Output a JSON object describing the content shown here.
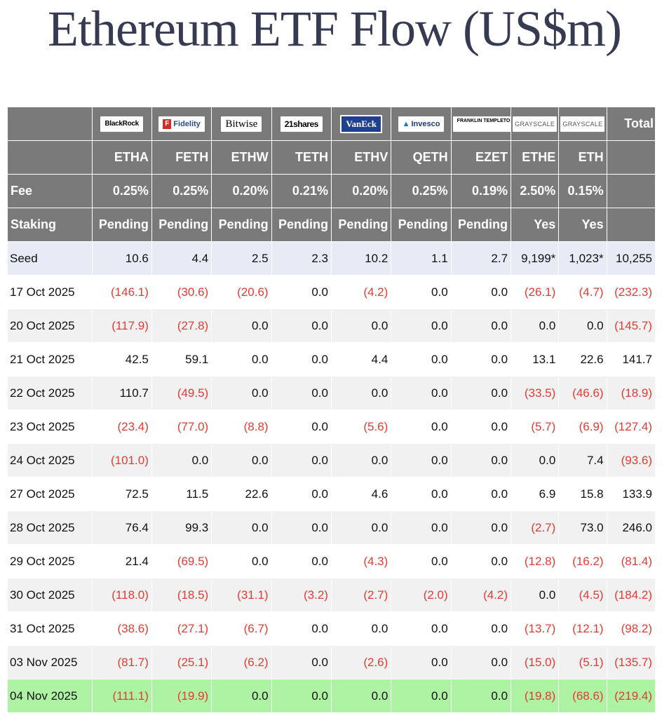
{
  "title": "Ethereum ETF Flow (US$m)",
  "issuers": [
    {
      "name": "BlackRock",
      "logo_text": "BlackRock"
    },
    {
      "name": "Fidelity",
      "logo_text": "Fidelity"
    },
    {
      "name": "Bitwise",
      "logo_text": "Bitwise"
    },
    {
      "name": "21shares",
      "logo_text": "21shares"
    },
    {
      "name": "VanEck",
      "logo_text": "VanEck"
    },
    {
      "name": "Invesco",
      "logo_text": "Invesco"
    },
    {
      "name": "Franklin Templeton",
      "logo_text": "FRANKLIN TEMPLETON"
    },
    {
      "name": "Grayscale",
      "logo_text": "GRAYSCALE"
    },
    {
      "name": "Grayscale",
      "logo_text": "GRAYSCALE"
    }
  ],
  "header": {
    "total_label": "Total",
    "fee_label": "Fee",
    "staking_label": "Staking",
    "tickers": [
      "ETHA",
      "FETH",
      "ETHW",
      "TETH",
      "ETHV",
      "QETH",
      "EZET",
      "ETHE",
      "ETH"
    ],
    "fees": [
      "0.25%",
      "0.25%",
      "0.20%",
      "0.21%",
      "0.20%",
      "0.25%",
      "0.19%",
      "2.50%",
      "0.15%"
    ],
    "staking": [
      "Pending",
      "Pending",
      "Pending",
      "Pending",
      "Pending",
      "Pending",
      "Pending",
      "Yes",
      "Yes"
    ]
  },
  "rows": [
    {
      "label": "Seed",
      "values": [
        "10.6",
        "4.4",
        "2.5",
        "2.3",
        "10.2",
        "1.1",
        "2.7",
        "9,199*",
        "1,023*",
        "10,255"
      ]
    },
    {
      "label": "17 Oct 2025",
      "values": [
        "(146.1)",
        "(30.6)",
        "(20.6)",
        "0.0",
        "(4.2)",
        "0.0",
        "0.0",
        "(26.1)",
        "(4.7)",
        "(232.3)"
      ]
    },
    {
      "label": "20 Oct 2025",
      "values": [
        "(117.9)",
        "(27.8)",
        "0.0",
        "0.0",
        "0.0",
        "0.0",
        "0.0",
        "0.0",
        "0.0",
        "(145.7)"
      ]
    },
    {
      "label": "21 Oct 2025",
      "values": [
        "42.5",
        "59.1",
        "0.0",
        "0.0",
        "4.4",
        "0.0",
        "0.0",
        "13.1",
        "22.6",
        "141.7"
      ]
    },
    {
      "label": "22 Oct 2025",
      "values": [
        "110.7",
        "(49.5)",
        "0.0",
        "0.0",
        "0.0",
        "0.0",
        "0.0",
        "(33.5)",
        "(46.6)",
        "(18.9)"
      ]
    },
    {
      "label": "23 Oct 2025",
      "values": [
        "(23.4)",
        "(77.0)",
        "(8.8)",
        "0.0",
        "(5.6)",
        "0.0",
        "0.0",
        "(5.7)",
        "(6.9)",
        "(127.4)"
      ]
    },
    {
      "label": "24 Oct 2025",
      "values": [
        "(101.0)",
        "0.0",
        "0.0",
        "0.0",
        "0.0",
        "0.0",
        "0.0",
        "0.0",
        "7.4",
        "(93.6)"
      ]
    },
    {
      "label": "27 Oct 2025",
      "values": [
        "72.5",
        "11.5",
        "22.6",
        "0.0",
        "4.6",
        "0.0",
        "0.0",
        "6.9",
        "15.8",
        "133.9"
      ]
    },
    {
      "label": "28 Oct 2025",
      "values": [
        "76.4",
        "99.3",
        "0.0",
        "0.0",
        "0.0",
        "0.0",
        "0.0",
        "(2.7)",
        "73.0",
        "246.0"
      ]
    },
    {
      "label": "29 Oct 2025",
      "values": [
        "21.4",
        "(69.5)",
        "0.0",
        "0.0",
        "(4.3)",
        "0.0",
        "0.0",
        "(12.8)",
        "(16.2)",
        "(81.4)"
      ]
    },
    {
      "label": "30 Oct 2025",
      "values": [
        "(118.0)",
        "(18.5)",
        "(31.1)",
        "(3.2)",
        "(2.7)",
        "(2.0)",
        "(4.2)",
        "0.0",
        "(4.5)",
        "(184.2)"
      ]
    },
    {
      "label": "31 Oct 2025",
      "values": [
        "(38.6)",
        "(27.1)",
        "(6.7)",
        "0.0",
        "0.0",
        "0.0",
        "0.0",
        "(13.7)",
        "(12.1)",
        "(98.2)"
      ]
    },
    {
      "label": "03 Nov 2025",
      "values": [
        "(81.7)",
        "(25.1)",
        "(6.2)",
        "0.0",
        "(2.6)",
        "0.0",
        "0.0",
        "(15.0)",
        "(5.1)",
        "(135.7)"
      ]
    },
    {
      "label": "04 Nov 2025",
      "values": [
        "(111.1)",
        "(19.9)",
        "0.0",
        "0.0",
        "0.0",
        "0.0",
        "0.0",
        "(19.8)",
        "(68.6)",
        "(219.4)"
      ]
    }
  ],
  "colors": {
    "header_bg": "#7a7a7a",
    "seed_row_bg": "#e8ebf6",
    "alt_row_bg": "#f1f1f1",
    "latest_row_bg": "#aef2a3",
    "negative_text": "#e03c34",
    "title_text": "#363a52"
  }
}
